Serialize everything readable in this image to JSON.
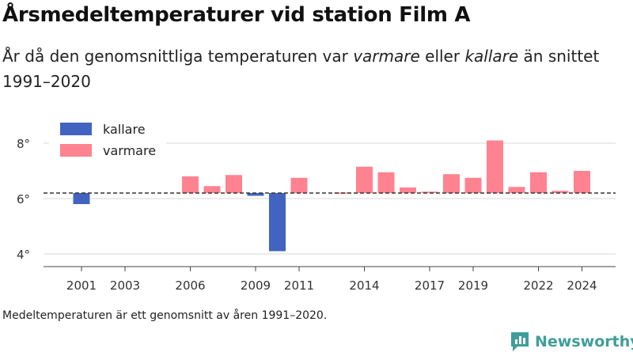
{
  "header": {
    "title": "Årsmedeltemperaturer vid station Film A",
    "subtitle_start": "År då den genomsnittliga temperaturen var ",
    "subtitle_warm": "varmare",
    "subtitle_mid": " eller ",
    "subtitle_cold": "kallare",
    "subtitle_end": " än snittet 1991–2020"
  },
  "footer": {
    "note": "Medeltemperaturen är ett genomsnitt av åren 1991–2020.",
    "brand": "Newsworthy"
  },
  "colors": {
    "colder": "#4263c0",
    "warmer": "#ff8290",
    "grid": "#d8d8d8",
    "baseline": "#333333",
    "brand": "#3f9e9a"
  },
  "chart_data": {
    "type": "bar",
    "baseline": 6.2,
    "ylim": [
      3.6,
      8.6
    ],
    "y_ticks": [
      4,
      6,
      8
    ],
    "y_tick_labels": [
      "4°",
      "6°",
      "8°"
    ],
    "x_range": [
      1999,
      2026
    ],
    "x_ticks": [
      2001,
      2003,
      2006,
      2009,
      2011,
      2014,
      2017,
      2019,
      2022,
      2024
    ],
    "x_tick_labels": [
      "2001",
      "2003",
      "2006",
      "2009",
      "2011",
      "2014",
      "2017",
      "2019",
      "2022",
      "2024"
    ],
    "legend": {
      "position": "top-left",
      "items": [
        {
          "key": "colder",
          "label": "kallare"
        },
        {
          "key": "warmer",
          "label": "varmare"
        }
      ]
    },
    "grid": true,
    "data": [
      {
        "year": 2001,
        "value": 5.8
      },
      {
        "year": 2006,
        "value": 6.8
      },
      {
        "year": 2007,
        "value": 6.45
      },
      {
        "year": 2008,
        "value": 6.85
      },
      {
        "year": 2009,
        "value": 6.1
      },
      {
        "year": 2010,
        "value": 4.1
      },
      {
        "year": 2011,
        "value": 6.75
      },
      {
        "year": 2013,
        "value": 6.22
      },
      {
        "year": 2014,
        "value": 7.15
      },
      {
        "year": 2015,
        "value": 6.95
      },
      {
        "year": 2016,
        "value": 6.4
      },
      {
        "year": 2017,
        "value": 6.25
      },
      {
        "year": 2018,
        "value": 6.88
      },
      {
        "year": 2019,
        "value": 6.75
      },
      {
        "year": 2020,
        "value": 8.1
      },
      {
        "year": 2021,
        "value": 6.42
      },
      {
        "year": 2022,
        "value": 6.95
      },
      {
        "year": 2023,
        "value": 6.28
      },
      {
        "year": 2024,
        "value": 7.0
      }
    ]
  }
}
